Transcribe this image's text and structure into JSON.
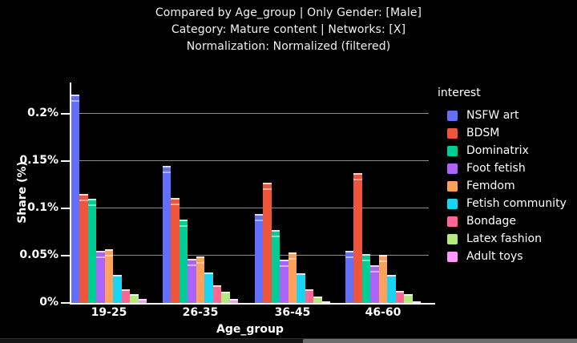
{
  "title": {
    "line1": "Compared by Age_group | Only Gender: [Male]",
    "line2": "Category: Mature content | Networks: [X]",
    "line3": "Normalization: Normalized (filtered)"
  },
  "chart_data": {
    "type": "bar",
    "grouping": "grouped",
    "title": "Compared by Age_group | Only Gender: [Male] / Category: Mature content | Networks: [X] / Normalization: Normalized (filtered)",
    "xlabel": "Age_group",
    "ylabel": "Share (%)",
    "categories": [
      "19-25",
      "26-35",
      "36-45",
      "46-60"
    ],
    "yticks": [
      0,
      0.05,
      0.1,
      0.15,
      0.2
    ],
    "ytick_labels": [
      "0%",
      "0.05%",
      "0.1%",
      "0.15%",
      "0.2%"
    ],
    "ylim": [
      0,
      0.233
    ],
    "grid": true,
    "background": "#000000",
    "legend_title": "interest",
    "legend_position": "right",
    "series": [
      {
        "name": "NSFW art",
        "color": "#636EFA",
        "values": [
          0.22,
          0.145,
          0.094,
          0.055
        ]
      },
      {
        "name": "BDSM",
        "color": "#EF553B",
        "values": [
          0.115,
          0.111,
          0.127,
          0.137
        ]
      },
      {
        "name": "Dominatrix",
        "color": "#00CC96",
        "values": [
          0.11,
          0.088,
          0.077,
          0.052
        ]
      },
      {
        "name": "Foot fetish",
        "color": "#AB63FA",
        "values": [
          0.055,
          0.047,
          0.046,
          0.04
        ]
      },
      {
        "name": "Femdom",
        "color": "#FFA15A",
        "values": [
          0.057,
          0.049,
          0.053,
          0.051
        ]
      },
      {
        "name": "Fetish community",
        "color": "#19D3F3",
        "values": [
          0.03,
          0.032,
          0.031,
          0.03
        ]
      },
      {
        "name": "Bondage",
        "color": "#FF6692",
        "values": [
          0.014,
          0.019,
          0.014,
          0.013
        ]
      },
      {
        "name": "Latex fashion",
        "color": "#B6E880",
        "values": [
          0.009,
          0.012,
          0.007,
          0.009
        ]
      },
      {
        "name": "Adult toys",
        "color": "#FF97FF",
        "values": [
          0.004,
          0.004,
          0.002,
          0.002
        ]
      }
    ]
  }
}
